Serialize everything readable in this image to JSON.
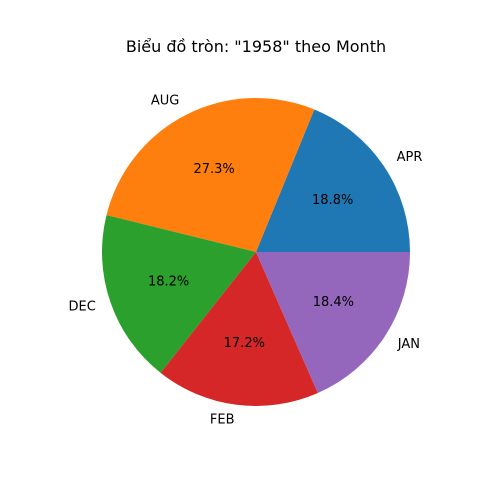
{
  "chart_data": {
    "type": "pie",
    "title": "Biểu đồ tròn:  \"1958\" theo Month",
    "slices": [
      {
        "label": "APR",
        "value": 18.8,
        "pct_label": "18.8%",
        "color": "#1f77b4"
      },
      {
        "label": "AUG",
        "value": 27.3,
        "pct_label": "27.3%",
        "color": "#ff7f0e"
      },
      {
        "label": "DEC",
        "value": 18.2,
        "pct_label": "18.2%",
        "color": "#2ca02c"
      },
      {
        "label": "FEB",
        "value": 17.2,
        "pct_label": "17.2%",
        "color": "#d62728"
      },
      {
        "label": "JAN",
        "value": 18.4,
        "pct_label": "18.4%",
        "color": "#9467bd"
      }
    ],
    "start_angle_deg": 0,
    "direction": "counterclockwise",
    "legend": "none"
  }
}
